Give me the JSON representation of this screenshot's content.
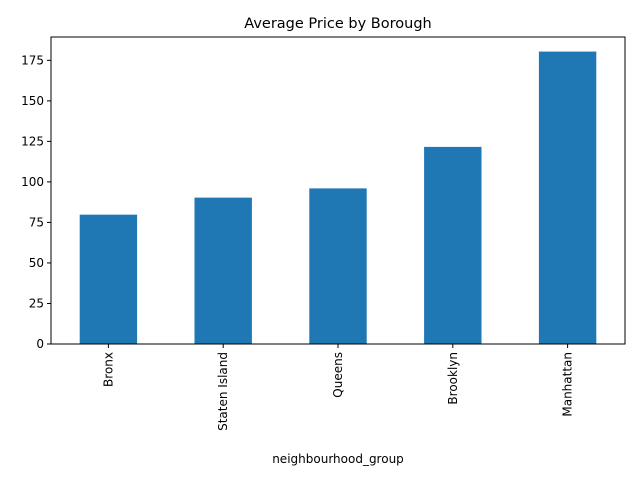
{
  "chart_data": {
    "type": "bar",
    "title": "Average Price by Borough",
    "xlabel": "neighbourhood_group",
    "ylabel": "",
    "categories": [
      "Bronx",
      "Staten Island",
      "Queens",
      "Brooklyn",
      "Manhattan"
    ],
    "values": [
      79.8,
      90.3,
      96.0,
      121.6,
      180.4
    ],
    "ylim": [
      0,
      189.4
    ],
    "yticks": [
      0,
      25,
      50,
      75,
      100,
      125,
      150,
      175
    ],
    "grid": false,
    "legend": false,
    "colors": {
      "bar": "#1f77b4",
      "axes": "#000000"
    }
  }
}
